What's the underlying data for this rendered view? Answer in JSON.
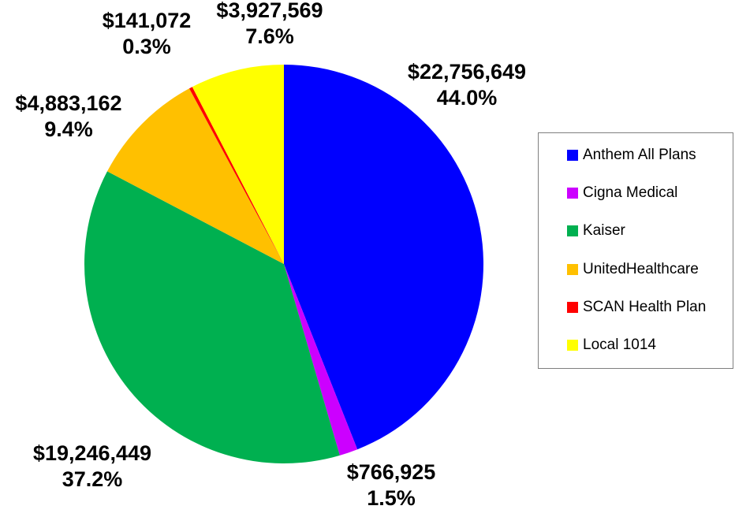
{
  "chart_data": {
    "type": "pie",
    "title": "",
    "slices": [
      {
        "name": "Anthem All Plans",
        "value": 22756649,
        "amount_label": "$22,756,649",
        "percent_label": "44.0%",
        "color": "#0000FF"
      },
      {
        "name": "Cigna Medical",
        "value": 766925,
        "amount_label": "$766,925",
        "percent_label": "1.5%",
        "color": "#CC00FF"
      },
      {
        "name": "Kaiser",
        "value": 19246449,
        "amount_label": "$19,246,449",
        "percent_label": "37.2%",
        "color": "#00B050"
      },
      {
        "name": "UnitedHealthcare",
        "value": 4883162,
        "amount_label": "$4,883,162",
        "percent_label": "9.4%",
        "color": "#FFC000"
      },
      {
        "name": "SCAN Health Plan",
        "value": 141072,
        "amount_label": "$141,072",
        "percent_label": "0.3%",
        "color": "#FF0000"
      },
      {
        "name": "Local 1014",
        "value": 3927569,
        "amount_label": "$3,927,569",
        "percent_label": "7.6%",
        "color": "#FFFF00"
      }
    ],
    "legend_position": "right"
  }
}
